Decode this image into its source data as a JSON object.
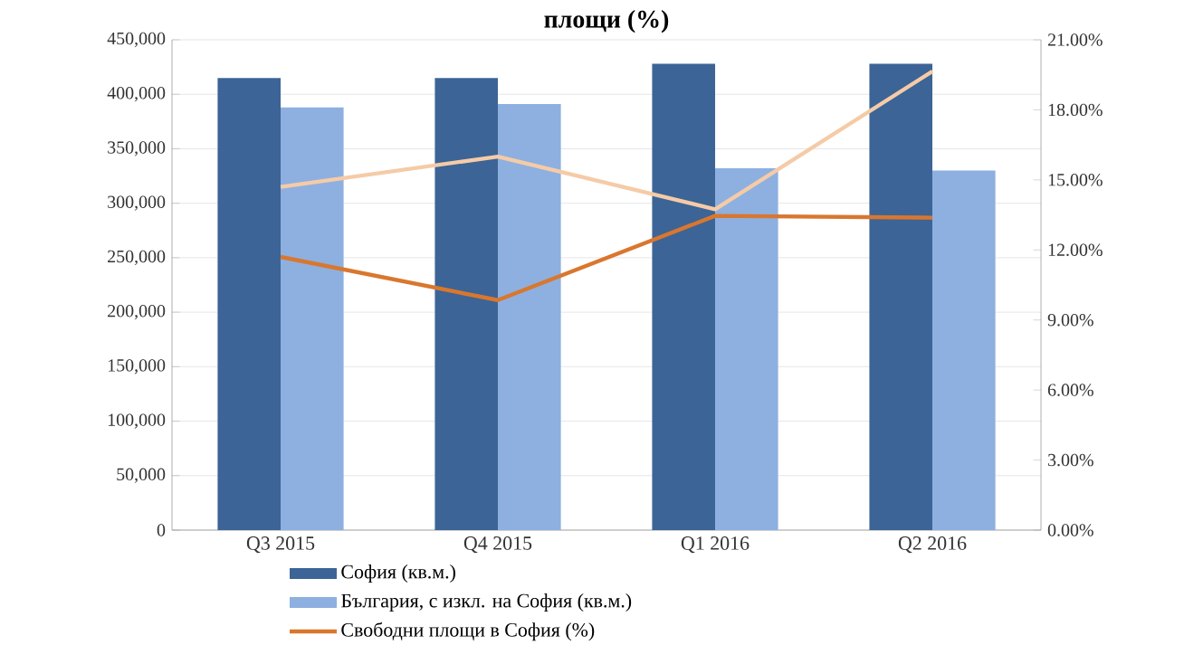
{
  "chart_data": {
    "type": "bar",
    "title": "площи (%)",
    "categories": [
      "Q3 2015",
      "Q4 2015",
      "Q1 2016",
      "Q2 2016"
    ],
    "series": [
      {
        "name": "София (кв.м.)",
        "color": "#3c6496",
        "values": [
          415000,
          415000,
          428000,
          428000
        ]
      },
      {
        "name": "България, с изкл. на София (кв.м.)",
        "color": "#8db0e0",
        "values": [
          388000,
          391000,
          332000,
          330000
        ]
      },
      {
        "name": "Свободни площи в София (%)",
        "type": "line",
        "axis": "y2",
        "color": "#d9772e",
        "values": [
          11.7,
          9.85,
          13.46,
          13.38
        ]
      },
      {
        "type": "line",
        "axis": "y2",
        "color": "#f5cba7",
        "values": [
          14.7,
          16.0,
          13.74,
          19.65
        ]
      }
    ],
    "ylim": [
      0,
      450000
    ],
    "yticks": [
      0,
      {
        "value": 50000,
        "label": "50,000"
      },
      {
        "value": 100000,
        "label": "100,000"
      },
      {
        "value": 150000,
        "label": "150,000"
      },
      {
        "value": 200000,
        "label": "200,000"
      },
      {
        "value": 250000,
        "label": "250,000"
      },
      {
        "value": 300000,
        "label": "300,000"
      },
      {
        "value": 350000,
        "label": "350,000"
      },
      {
        "value": 400000,
        "label": "400,000"
      },
      {
        "value": 450000,
        "label": "450,000"
      }
    ],
    "y2lim": [
      0,
      21
    ],
    "y2ticks": [
      {
        "value": 0,
        "label": "0.00%"
      },
      {
        "value": 3,
        "label": "3.00%"
      },
      {
        "value": 6,
        "label": "6.00%"
      },
      {
        "value": 9,
        "label": "9.00%"
      },
      {
        "value": 12,
        "label": "12.00%"
      },
      {
        "value": 15,
        "label": "15.00%"
      },
      {
        "value": 18,
        "label": "18.00%"
      },
      {
        "value": 21,
        "label": "21.00%"
      }
    ],
    "grid": "y",
    "legend": "bottom"
  }
}
